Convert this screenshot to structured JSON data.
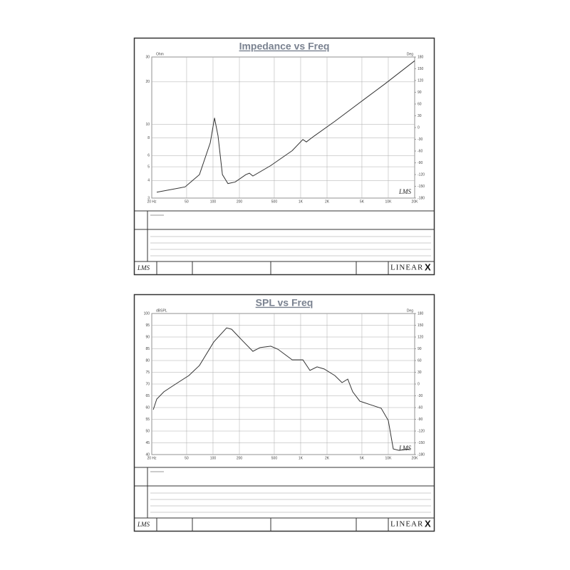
{
  "chart_data": [
    {
      "type": "line",
      "title": "Impedance vs Freq",
      "ylabel": "Ohm",
      "y2label": "Deg",
      "x": [
        22.8,
        48,
        70,
        93,
        104,
        114,
        128,
        148,
        179,
        237,
        260,
        285,
        456,
        800,
        1060,
        1162,
        1403,
        2456,
        5204,
        9110,
        20000
      ],
      "values": [
        3.3,
        3.6,
        4.4,
        7.4,
        11.1,
        8.3,
        4.4,
        3.8,
        3.9,
        4.4,
        4.5,
        4.3,
        5.1,
        6.5,
        7.8,
        7.5,
        8.2,
        10.5,
        14.9,
        19.3,
        28.2
      ],
      "color": "#333333",
      "xscale": "log",
      "yscale": "log",
      "grid": true,
      "xlim": [
        20,
        20000
      ],
      "xticks": [
        {
          "value": 20,
          "label": "20 Hz"
        },
        50,
        100,
        200,
        500,
        {
          "value": 1000,
          "label": "1K"
        },
        {
          "value": 2000,
          "label": "2K"
        },
        {
          "value": 5000,
          "label": "5K"
        },
        {
          "value": 10000,
          "label": "10K"
        },
        {
          "value": 20000,
          "label": "20K"
        }
      ],
      "ylim": [
        3,
        30
      ],
      "yticks": [
        3,
        4,
        5,
        6,
        8,
        10,
        20,
        30
      ],
      "y2lim": [
        -180,
        180
      ],
      "y2ticks": [
        -180,
        -150,
        -120,
        -90,
        -60,
        -30,
        0,
        30,
        60,
        90,
        120,
        150,
        180
      ]
    },
    {
      "type": "line",
      "title": "SPL vs Freq",
      "ylabel": "dBSPL",
      "y2label": "Deg",
      "x": [
        20.8,
        22.8,
        27.5,
        36.4,
        53,
        70,
        102,
        143,
        163,
        216,
        285,
        344,
        456,
        550,
        800,
        1060,
        1276,
        1539,
        1855,
        2456,
        2966,
        3445,
        3927,
        4734,
        6270,
        8300,
        10000,
        11400,
        13250,
        17540
      ],
      "values": [
        59.1,
        63.6,
        66.7,
        69.7,
        73.6,
        77.9,
        87.9,
        93.9,
        93.3,
        88.5,
        83.9,
        85.5,
        86.1,
        84.8,
        80.3,
        80.3,
        75.8,
        77.3,
        76.4,
        73.6,
        70.6,
        72.1,
        66.7,
        62.7,
        61.2,
        59.7,
        54.5,
        42.4,
        41.8,
        42.4
      ],
      "color": "#333333",
      "xscale": "log",
      "yscale": "linear",
      "grid": true,
      "xlim": [
        20,
        20000
      ],
      "xticks": [
        {
          "value": 20,
          "label": "20 Hz"
        },
        50,
        100,
        200,
        500,
        {
          "value": 1000,
          "label": "1K"
        },
        {
          "value": 2000,
          "label": "2K"
        },
        {
          "value": 5000,
          "label": "5K"
        },
        {
          "value": 10000,
          "label": "10K"
        },
        {
          "value": 20000,
          "label": "20K"
        }
      ],
      "ylim": [
        40,
        100
      ],
      "yticks": [
        40,
        45,
        50,
        55,
        60,
        65,
        70,
        75,
        80,
        85,
        90,
        95,
        100
      ],
      "y2lim": [
        -180,
        180
      ],
      "y2ticks": [
        -180,
        -150,
        -120,
        -90,
        -60,
        -30,
        0,
        30,
        60,
        90,
        120,
        150,
        180
      ]
    }
  ],
  "footer": {
    "logo": "LMS",
    "brand": "LINEAR",
    "brand_mark": "X"
  }
}
